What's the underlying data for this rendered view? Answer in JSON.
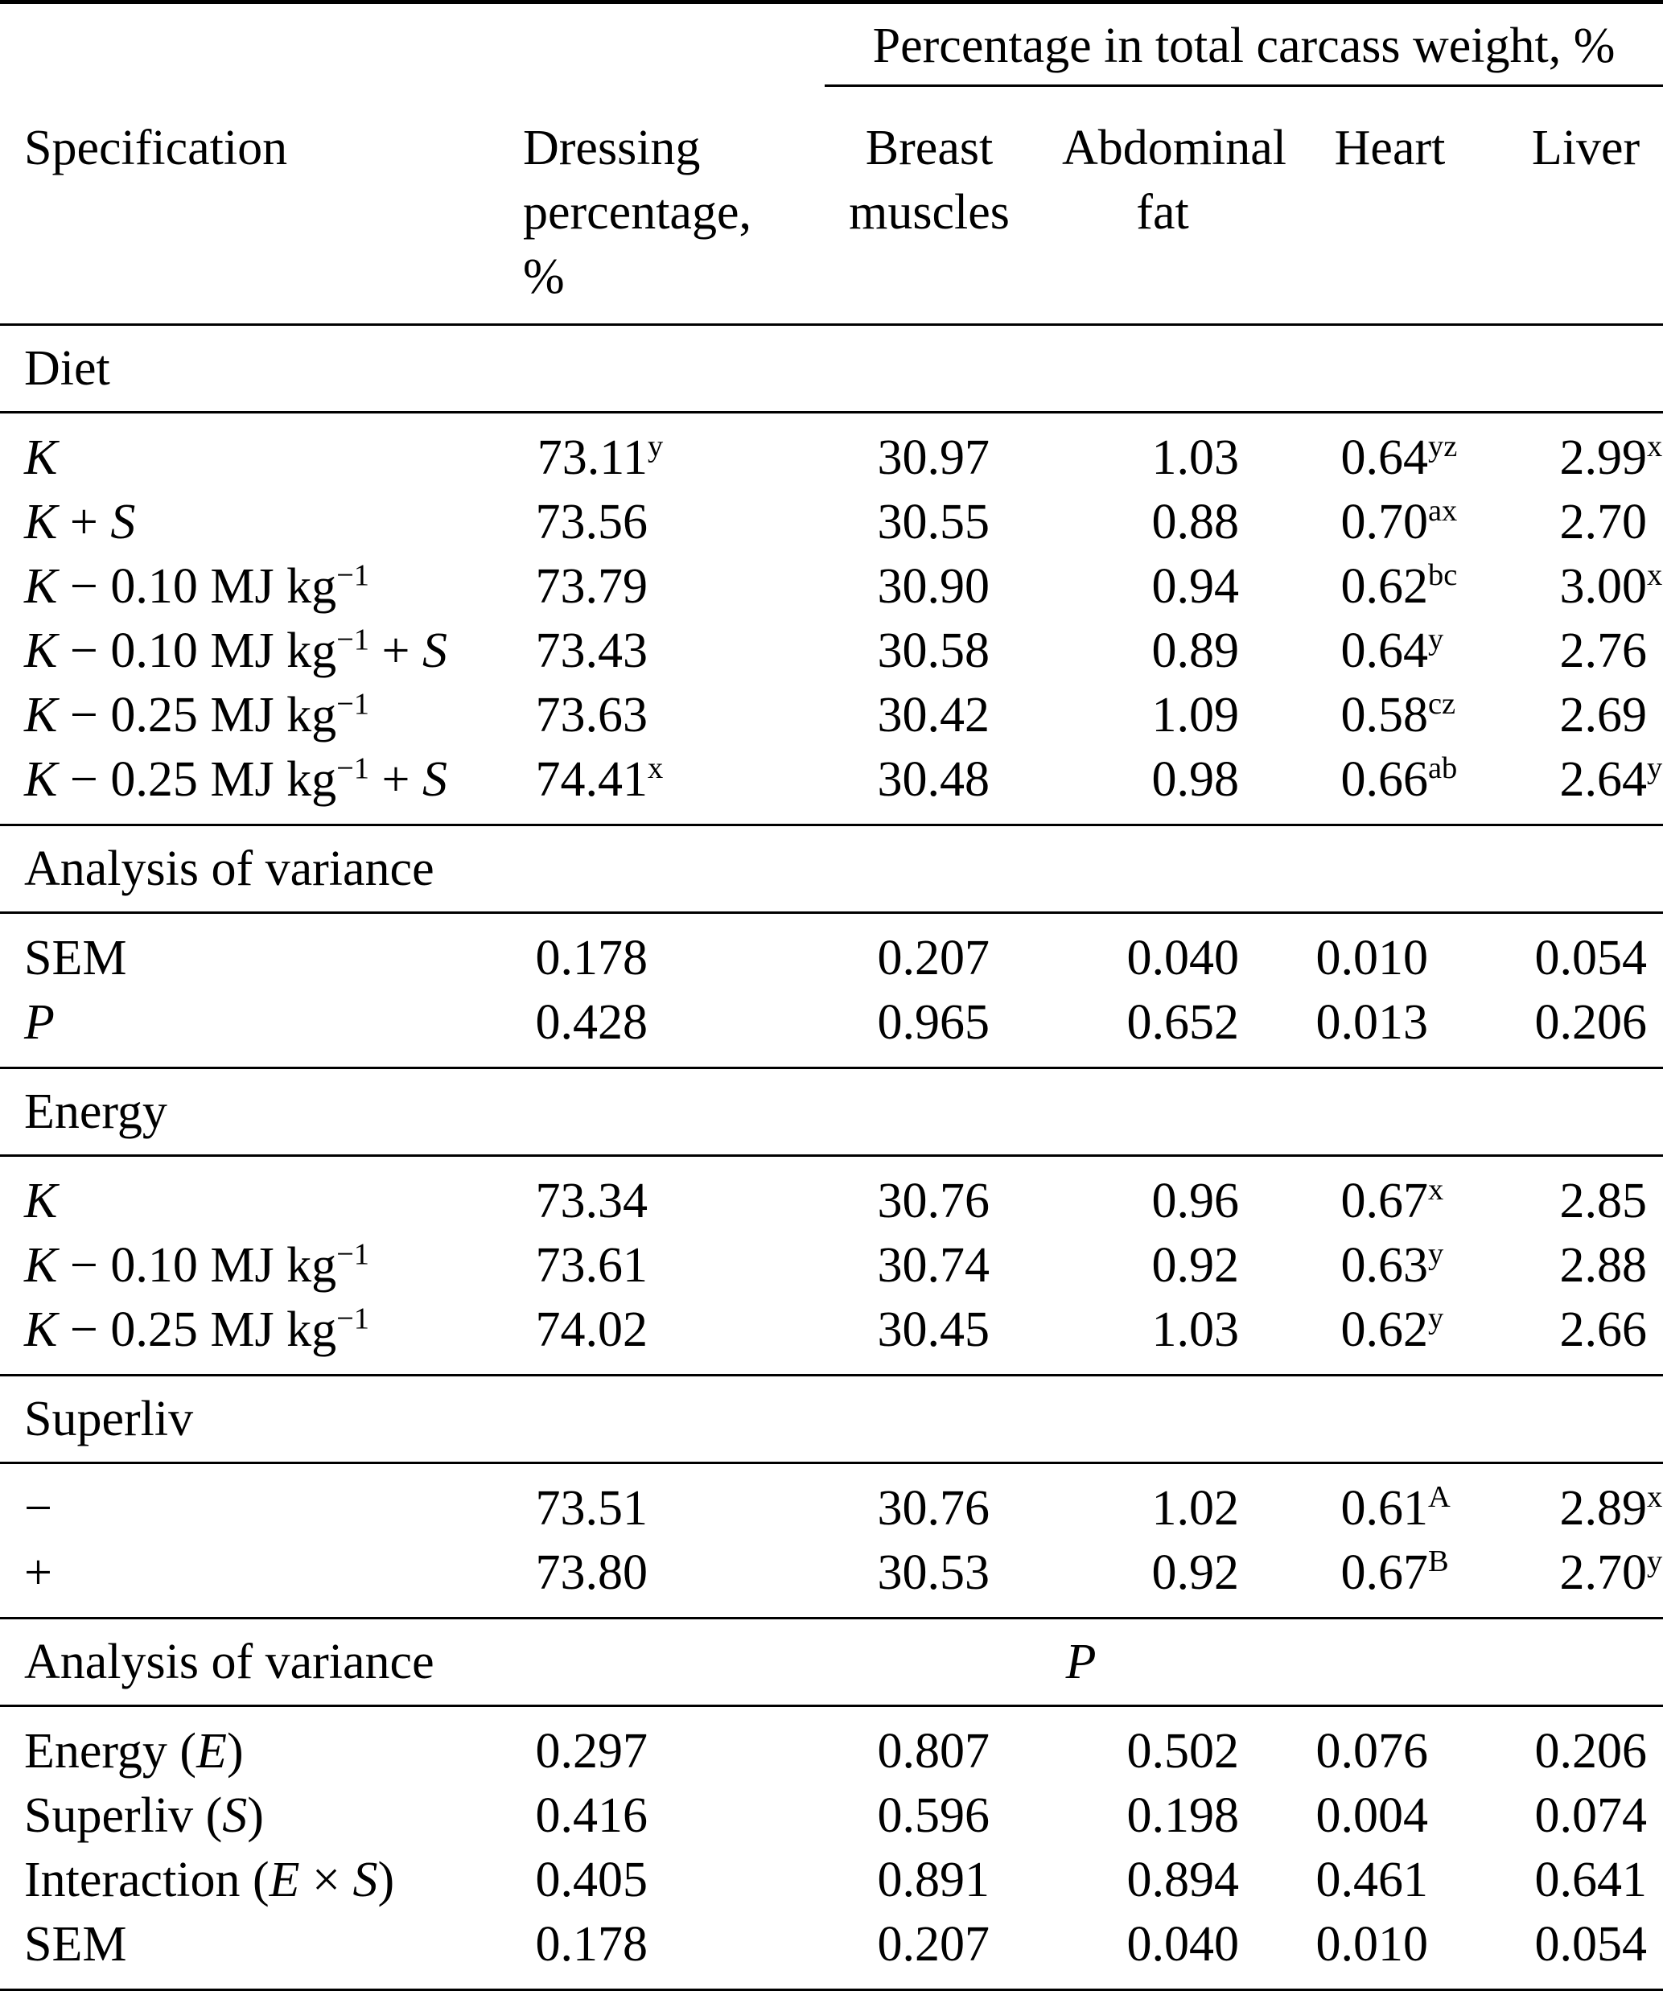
{
  "page": {
    "background": "#ffffff",
    "text_color": "#000000",
    "rule_color": "#000000"
  },
  "header": {
    "span_group": "Percentage in total carcass weight, %",
    "columns": {
      "specification": "Specification",
      "dressing": "Dressing percentage, %",
      "breast": "Breast muscles",
      "abdominal": "Abdominal fat",
      "heart": "Heart",
      "liver": "Liver"
    }
  },
  "sections": [
    {
      "id": "diet",
      "title": [
        {
          "t": "Diet",
          "st": "n"
        }
      ],
      "rows": [
        {
          "label": [
            {
              "t": "K",
              "st": "i"
            }
          ],
          "cells": [
            {
              "v": "73.11",
              "s": "y"
            },
            {
              "v": "30.97"
            },
            {
              "v": "1.03"
            },
            {
              "v": "0.64",
              "s": "yz"
            },
            {
              "v": "2.99",
              "s": "x"
            }
          ]
        },
        {
          "label": [
            {
              "t": "K",
              "st": "i"
            },
            {
              "t": " + ",
              "st": "n"
            },
            {
              "t": "S",
              "st": "i"
            }
          ],
          "cells": [
            {
              "v": "73.56"
            },
            {
              "v": "30.55"
            },
            {
              "v": "0.88"
            },
            {
              "v": "0.70",
              "s": "ax"
            },
            {
              "v": "2.70"
            }
          ]
        },
        {
          "label": [
            {
              "t": "K",
              "st": "i"
            },
            {
              "t": " − 0.10 MJ kg",
              "st": "n"
            },
            {
              "t": "−1",
              "st": "sup"
            }
          ],
          "cells": [
            {
              "v": "73.79"
            },
            {
              "v": "30.90"
            },
            {
              "v": "0.94"
            },
            {
              "v": "0.62",
              "s": "bc"
            },
            {
              "v": "3.00",
              "s": "x"
            }
          ]
        },
        {
          "label": [
            {
              "t": "K",
              "st": "i"
            },
            {
              "t": " − 0.10 MJ kg",
              "st": "n"
            },
            {
              "t": "−1",
              "st": "sup"
            },
            {
              "t": " + ",
              "st": "n"
            },
            {
              "t": "S",
              "st": "i"
            }
          ],
          "cells": [
            {
              "v": "73.43"
            },
            {
              "v": "30.58"
            },
            {
              "v": "0.89"
            },
            {
              "v": "0.64",
              "s": "y"
            },
            {
              "v": "2.76"
            }
          ]
        },
        {
          "label": [
            {
              "t": "K",
              "st": "i"
            },
            {
              "t": " − 0.25 MJ kg",
              "st": "n"
            },
            {
              "t": "−1",
              "st": "sup"
            }
          ],
          "cells": [
            {
              "v": "73.63"
            },
            {
              "v": "30.42"
            },
            {
              "v": "1.09"
            },
            {
              "v": "0.58",
              "s": "cz"
            },
            {
              "v": "2.69"
            }
          ]
        },
        {
          "label": [
            {
              "t": "K",
              "st": "i"
            },
            {
              "t": " − 0.25 MJ kg",
              "st": "n"
            },
            {
              "t": "−1",
              "st": "sup"
            },
            {
              "t": " + ",
              "st": "n"
            },
            {
              "t": "S",
              "st": "i"
            }
          ],
          "cells": [
            {
              "v": "74.41",
              "s": "x"
            },
            {
              "v": "30.48"
            },
            {
              "v": "0.98"
            },
            {
              "v": "0.66",
              "s": "ab"
            },
            {
              "v": "2.64",
              "s": "y"
            }
          ]
        }
      ]
    },
    {
      "id": "anova-diet",
      "title": [
        {
          "t": "Analysis of variance",
          "st": "n"
        }
      ],
      "rows": [
        {
          "label": [
            {
              "t": "SEM",
              "st": "n"
            }
          ],
          "cells": [
            {
              "v": "0.178"
            },
            {
              "v": "0.207"
            },
            {
              "v": "0.040"
            },
            {
              "v": "0.010"
            },
            {
              "v": "0.054"
            }
          ]
        },
        {
          "label": [
            {
              "t": "P",
              "st": "i"
            }
          ],
          "cells": [
            {
              "v": "0.428"
            },
            {
              "v": "0.965"
            },
            {
              "v": "0.652"
            },
            {
              "v": "0.013"
            },
            {
              "v": "0.206"
            }
          ]
        }
      ]
    },
    {
      "id": "energy",
      "title": [
        {
          "t": "Energy",
          "st": "n"
        }
      ],
      "rows": [
        {
          "label": [
            {
              "t": "K",
              "st": "i"
            }
          ],
          "cells": [
            {
              "v": "73.34"
            },
            {
              "v": "30.76"
            },
            {
              "v": "0.96"
            },
            {
              "v": "0.67",
              "s": "x"
            },
            {
              "v": "2.85"
            }
          ]
        },
        {
          "label": [
            {
              "t": "K",
              "st": "i"
            },
            {
              "t": " − 0.10 MJ kg",
              "st": "n"
            },
            {
              "t": "−1",
              "st": "sup"
            }
          ],
          "cells": [
            {
              "v": "73.61"
            },
            {
              "v": "30.74"
            },
            {
              "v": "0.92"
            },
            {
              "v": "0.63",
              "s": "y"
            },
            {
              "v": "2.88"
            }
          ]
        },
        {
          "label": [
            {
              "t": "K",
              "st": "i"
            },
            {
              "t": " − 0.25 MJ kg",
              "st": "n"
            },
            {
              "t": "−1",
              "st": "sup"
            }
          ],
          "cells": [
            {
              "v": "74.02"
            },
            {
              "v": "30.45"
            },
            {
              "v": "1.03"
            },
            {
              "v": "0.62",
              "s": "y"
            },
            {
              "v": "2.66"
            }
          ]
        }
      ]
    },
    {
      "id": "superliv",
      "title": [
        {
          "t": "Superliv",
          "st": "n"
        }
      ],
      "rows": [
        {
          "label": [
            {
              "t": "−",
              "st": "n"
            }
          ],
          "cells": [
            {
              "v": "73.51"
            },
            {
              "v": "30.76"
            },
            {
              "v": "1.02"
            },
            {
              "v": "0.61",
              "s": "A"
            },
            {
              "v": "2.89",
              "s": "x"
            }
          ]
        },
        {
          "label": [
            {
              "t": "+",
              "st": "n"
            }
          ],
          "cells": [
            {
              "v": "73.80"
            },
            {
              "v": "30.53"
            },
            {
              "v": "0.92"
            },
            {
              "v": "0.67",
              "s": "B"
            },
            {
              "v": "2.70",
              "s": "y"
            }
          ]
        }
      ]
    },
    {
      "id": "anova-factorial",
      "title": [
        {
          "t": "Analysis of variance",
          "st": "n"
        }
      ],
      "note": "P",
      "rows": [
        {
          "label": [
            {
              "t": "Energy (",
              "st": "n"
            },
            {
              "t": "E",
              "st": "i"
            },
            {
              "t": ")",
              "st": "n"
            }
          ],
          "cells": [
            {
              "v": "0.297"
            },
            {
              "v": "0.807"
            },
            {
              "v": "0.502"
            },
            {
              "v": "0.076"
            },
            {
              "v": "0.206"
            }
          ]
        },
        {
          "label": [
            {
              "t": "Superliv (",
              "st": "n"
            },
            {
              "t": "S",
              "st": "i"
            },
            {
              "t": ")",
              "st": "n"
            }
          ],
          "cells": [
            {
              "v": "0.416"
            },
            {
              "v": "0.596"
            },
            {
              "v": "0.198"
            },
            {
              "v": "0.004"
            },
            {
              "v": "0.074"
            }
          ]
        },
        {
          "label": [
            {
              "t": "Interaction (",
              "st": "n"
            },
            {
              "t": "E",
              "st": "i"
            },
            {
              "t": " × ",
              "st": "n"
            },
            {
              "t": "S",
              "st": "i"
            },
            {
              "t": ")",
              "st": "n"
            }
          ],
          "cells": [
            {
              "v": "0.405"
            },
            {
              "v": "0.891"
            },
            {
              "v": "0.894"
            },
            {
              "v": "0.461"
            },
            {
              "v": "0.641"
            }
          ]
        },
        {
          "label": [
            {
              "t": "SEM",
              "st": "n"
            }
          ],
          "cells": [
            {
              "v": "0.178"
            },
            {
              "v": "0.207"
            },
            {
              "v": "0.040"
            },
            {
              "v": "0.010"
            },
            {
              "v": "0.054"
            }
          ]
        }
      ]
    }
  ]
}
